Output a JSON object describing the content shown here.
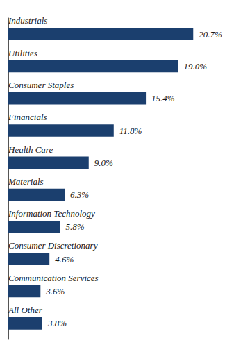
{
  "chart_data": {
    "type": "bar",
    "orientation": "horizontal",
    "categories": [
      "Industrials",
      "Utilities",
      "Consumer Staples",
      "Financials",
      "Health Care",
      "Materials",
      "Information Technology",
      "Consumer Discretionary",
      "Communication Services",
      "All Other"
    ],
    "values": [
      20.7,
      19.0,
      15.4,
      11.8,
      9.0,
      6.3,
      5.8,
      4.6,
      3.6,
      3.8
    ],
    "value_labels": [
      "20.7%",
      "19.0%",
      "15.4%",
      "11.8%",
      "9.0%",
      "6.3%",
      "5.8%",
      "4.6%",
      "3.6%",
      "3.8%"
    ],
    "data_labels": true,
    "color": "#1b3f6e",
    "xlim": [
      0,
      25.5
    ],
    "tick_labels": false,
    "grid": false
  }
}
